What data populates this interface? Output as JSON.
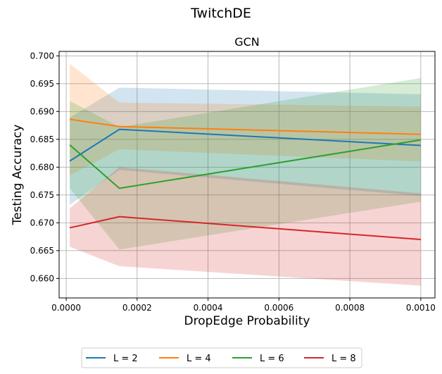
{
  "chart_data": {
    "type": "line",
    "suptitle": "TwitchDE",
    "title": "GCN",
    "xlabel": "DropEdge Probability",
    "ylabel": "Testing Accuracy",
    "xlim": [
      -2e-05,
      0.00104
    ],
    "ylim": [
      0.6565,
      0.7008
    ],
    "xticks": [
      0.0,
      0.0002,
      0.0004,
      0.0006,
      0.0008,
      0.001
    ],
    "xtick_labels": [
      "0.0000",
      "0.0002",
      "0.0004",
      "0.0006",
      "0.0008",
      "0.0010"
    ],
    "yticks": [
      0.66,
      0.665,
      0.67,
      0.675,
      0.68,
      0.685,
      0.69,
      0.695,
      0.7
    ],
    "ytick_labels": [
      "0.660",
      "0.665",
      "0.670",
      "0.675",
      "0.680",
      "0.685",
      "0.690",
      "0.695",
      "0.700"
    ],
    "grid": true,
    "legend_placement": "bottom-center, below axes",
    "x": [
      1e-05,
      0.00015,
      0.001
    ],
    "series": [
      {
        "name": "L = 2",
        "color": "#1f77b4",
        "values": [
          0.6811,
          0.6868,
          0.6839
        ],
        "lower": [
          0.6732,
          0.6795,
          0.6748
        ],
        "upper": [
          0.6889,
          0.6943,
          0.6931
        ]
      },
      {
        "name": "L = 4",
        "color": "#ff7f0e",
        "values": [
          0.6886,
          0.6873,
          0.6859
        ],
        "lower": [
          0.6785,
          0.6832,
          0.681
        ],
        "upper": [
          0.6986,
          0.6916,
          0.6909
        ]
      },
      {
        "name": "L = 6",
        "color": "#2ca02c",
        "values": [
          0.684,
          0.6762,
          0.6849
        ],
        "lower": [
          0.6762,
          0.6652,
          0.6738
        ],
        "upper": [
          0.6919,
          0.6872,
          0.696
        ]
      },
      {
        "name": "L = 8",
        "color": "#d62728",
        "values": [
          0.6691,
          0.6711,
          0.667
        ],
        "lower": [
          0.6657,
          0.6622,
          0.6587
        ],
        "upper": [
          0.6726,
          0.68,
          0.6753
        ]
      }
    ]
  }
}
